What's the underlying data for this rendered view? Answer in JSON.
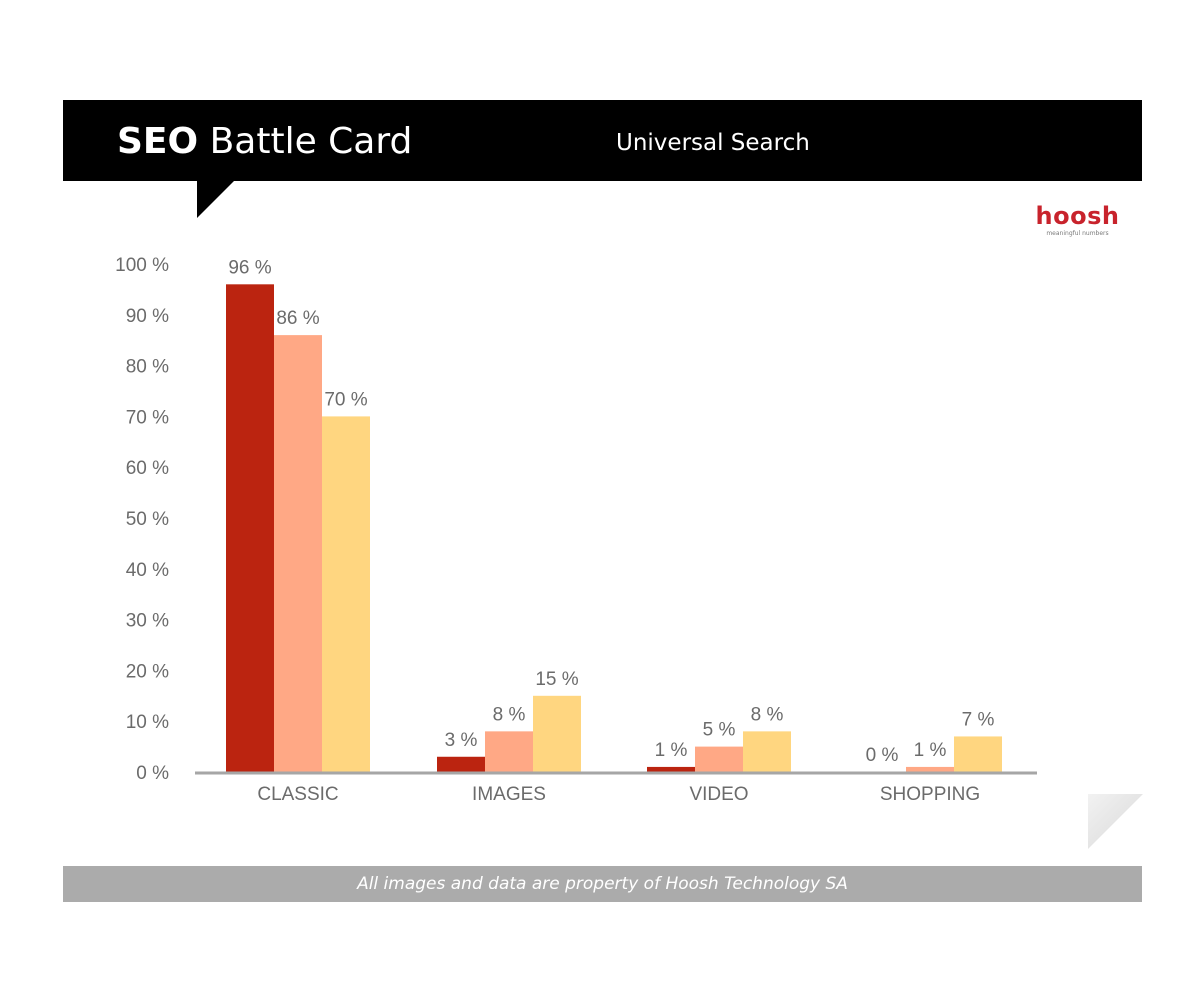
{
  "header": {
    "title_bold": "SEO",
    "title_rest": "Battle Card",
    "subtitle": "Universal Search"
  },
  "logo": {
    "word": "hoosh",
    "tagline": "meaningful numbers"
  },
  "footer": {
    "text": "All images and data are property of Hoosh Technology SA"
  },
  "colors": {
    "header": "#000000",
    "series": [
      "#bb2410",
      "#ffa885",
      "#ffd680"
    ],
    "axis": "#a6a6a6",
    "footer": "#ababab",
    "logo": "#c8232c"
  },
  "chart_data": {
    "type": "bar",
    "title": "Universal Search",
    "categories": [
      "CLASSIC",
      "IMAGES",
      "VIDEO",
      "SHOPPING"
    ],
    "series": [
      {
        "values": [
          96,
          3,
          1,
          0
        ],
        "labels": [
          "96 %",
          "3 %",
          "1 %",
          "0 %"
        ]
      },
      {
        "values": [
          86,
          8,
          5,
          1
        ],
        "labels": [
          "86 %",
          "8 %",
          "5 %",
          "1 %"
        ]
      },
      {
        "values": [
          70,
          15,
          8,
          7
        ],
        "labels": [
          "70 %",
          "15 %",
          "8 %",
          "7 %"
        ]
      }
    ],
    "yticks": [
      0,
      10,
      20,
      30,
      40,
      50,
      60,
      70,
      80,
      90,
      100
    ],
    "ytick_labels": [
      "0 %",
      "10 %",
      "20 %",
      "30 %",
      "40 %",
      "50 %",
      "60 %",
      "70 %",
      "80 %",
      "90 %",
      "100 %"
    ],
    "ylim": [
      0,
      100
    ],
    "xlabel": "",
    "ylabel": "",
    "grid": false,
    "legend": "none"
  }
}
